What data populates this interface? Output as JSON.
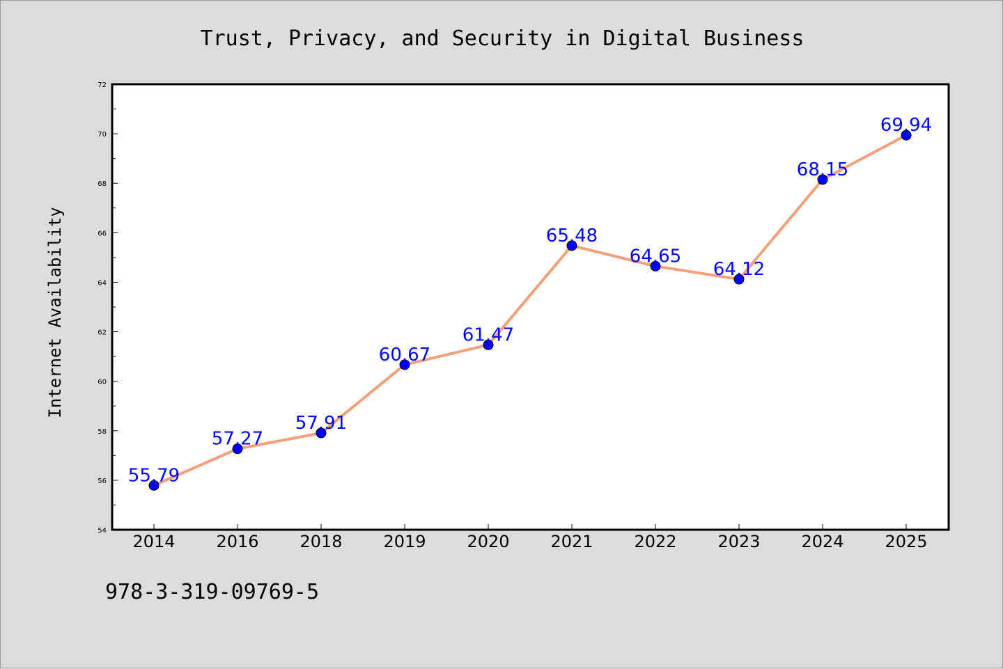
{
  "chart_data": {
    "type": "line",
    "title": "Trust, Privacy, and Security in Digital Business",
    "xlabel": "",
    "ylabel": "Internet Availability",
    "categories": [
      "2014",
      "2016",
      "2018",
      "2019",
      "2020",
      "2021",
      "2022",
      "2023",
      "2024",
      "2025"
    ],
    "values": [
      55.79,
      57.27,
      57.91,
      60.67,
      61.47,
      65.48,
      64.65,
      64.12,
      68.15,
      69.94
    ],
    "data_labels": [
      "55.79",
      "57.27",
      "57.91",
      "60.67",
      "61.47",
      "65.48",
      "64.65",
      "64.12",
      "68.15",
      "69.94"
    ],
    "ylim": [
      54,
      72
    ],
    "yticks": [
      "54",
      "56",
      "58",
      "60",
      "62",
      "64",
      "66",
      "68",
      "70",
      "72"
    ],
    "grid": false,
    "legend": "none",
    "colors": {
      "line": "#f4a07a",
      "marker": "#0000ff",
      "labels": "#0000ff",
      "background": "#dcdcdc",
      "plot_area": "#ffffff"
    }
  },
  "footer": {
    "isbn": "978-3-319-09769-5"
  }
}
